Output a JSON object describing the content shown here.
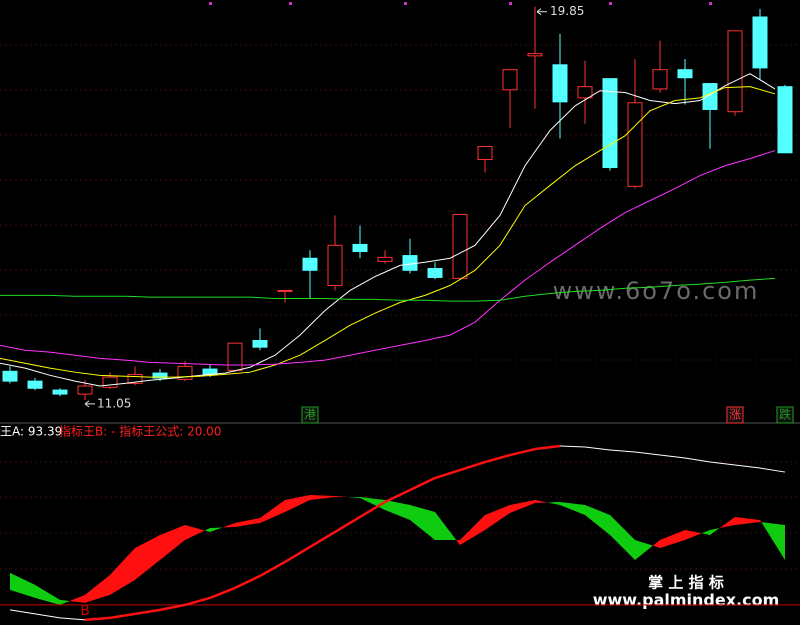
{
  "chart_data": [
    {
      "type": "candlestick",
      "categories": [
        null,
        null,
        null,
        null,
        null,
        null,
        null,
        null,
        null,
        null,
        null,
        null,
        "港",
        null,
        null,
        null,
        null,
        null,
        null,
        null,
        null,
        null,
        null,
        null,
        null,
        null,
        null,
        null,
        null,
        "涨",
        null,
        "跌"
      ],
      "category_colors": [
        null,
        null,
        null,
        null,
        null,
        null,
        null,
        null,
        null,
        null,
        null,
        null,
        "#1e9e1e",
        null,
        null,
        null,
        null,
        null,
        null,
        null,
        null,
        null,
        null,
        null,
        null,
        null,
        null,
        null,
        null,
        "#ff3030",
        null,
        "#1e9e1e"
      ],
      "open": [
        11.69,
        11.47,
        11.27,
        11.18,
        11.33,
        11.42,
        11.65,
        11.51,
        11.74,
        11.71,
        12.38,
        13.5,
        14.22,
        13.61,
        14.53,
        14.15,
        14.28,
        13.99,
        13.77,
        16.43,
        17.99,
        18.75,
        18.55,
        17.81,
        18.24,
        15.83,
        18.01,
        18.44,
        18.13,
        17.5,
        19.62,
        18.06
      ],
      "high": [
        11.8,
        11.54,
        11.31,
        11.49,
        11.67,
        11.8,
        11.74,
        11.92,
        11.83,
        12.32,
        12.65,
        13.5,
        14.4,
        15.18,
        14.95,
        14.4,
        14.66,
        14.13,
        15.2,
        16.72,
        18.44,
        19.85,
        19.24,
        18.64,
        18.24,
        18.68,
        19.09,
        18.68,
        18.13,
        19.31,
        19.8,
        18.1
      ],
      "low": [
        11.42,
        11.27,
        11.13,
        11.05,
        11.29,
        11.38,
        11.47,
        11.47,
        11.56,
        11.67,
        12.16,
        13.23,
        13.32,
        13.5,
        14.22,
        14.1,
        13.88,
        13.75,
        13.73,
        16.14,
        17.14,
        17.57,
        16.9,
        17.23,
        16.18,
        15.78,
        17.93,
        17.66,
        16.67,
        17.41,
        18.22,
        16.58
      ],
      "close": [
        11.47,
        11.31,
        11.18,
        11.36,
        11.56,
        11.62,
        11.54,
        11.8,
        11.62,
        12.32,
        12.23,
        13.5,
        13.95,
        14.51,
        14.37,
        14.24,
        13.95,
        13.79,
        15.2,
        16.72,
        18.44,
        18.8,
        17.72,
        18.06,
        16.25,
        17.7,
        18.44,
        18.26,
        17.55,
        19.31,
        18.48,
        16.58
      ],
      "up_color": "#ff3232",
      "down_color": "#54ffff",
      "lines": [
        {
          "color": "#ffffff",
          "values": [
            11.87,
            11.76,
            11.6,
            11.47,
            11.36,
            11.42,
            11.49,
            11.54,
            11.6,
            11.65,
            11.78,
            12.05,
            12.5,
            13.05,
            13.5,
            13.81,
            14.06,
            14.13,
            14.22,
            14.51,
            15.18,
            16.29,
            17.08,
            17.63,
            17.97,
            17.93,
            17.75,
            17.68,
            17.75,
            18.08,
            18.35,
            18.01
          ]
        },
        {
          "color": "#ffff00",
          "values": [
            11.98,
            11.87,
            11.76,
            11.67,
            11.6,
            11.58,
            11.56,
            11.56,
            11.58,
            11.62,
            11.67,
            11.83,
            12.05,
            12.38,
            12.72,
            12.99,
            13.23,
            13.39,
            13.61,
            13.95,
            14.51,
            15.4,
            15.85,
            16.29,
            16.63,
            16.96,
            17.52,
            17.75,
            17.81,
            18.04,
            18.06,
            17.9
          ]
        },
        {
          "color": "#ff33ff",
          "values": [
            12.27,
            12.16,
            12.12,
            12.05,
            11.98,
            11.94,
            11.89,
            11.87,
            11.85,
            11.83,
            11.83,
            11.85,
            11.89,
            11.94,
            12.05,
            12.16,
            12.27,
            12.38,
            12.5,
            12.79,
            13.28,
            13.73,
            14.13,
            14.51,
            14.89,
            15.24,
            15.51,
            15.78,
            16.07,
            16.29,
            16.45,
            16.63
          ]
        },
        {
          "color": "#22dd22",
          "values": [
            13.39,
            13.39,
            13.39,
            13.37,
            13.37,
            13.37,
            13.35,
            13.35,
            13.35,
            13.35,
            13.35,
            13.32,
            13.32,
            13.32,
            13.3,
            13.3,
            13.28,
            13.28,
            13.26,
            13.26,
            13.28,
            13.37,
            13.43,
            13.48,
            13.5,
            13.55,
            13.57,
            13.61,
            13.64,
            13.68,
            13.73,
            13.77
          ]
        }
      ],
      "high_label": 19.85,
      "low_label": 11.05,
      "ylim": [
        10.6,
        20
      ]
    },
    {
      "type": "indicator",
      "legend_a": "王A: 93.39",
      "legend_b": "指标王B: -  指标王公式: 20.00",
      "categories": [
        null,
        null,
        null,
        "B",
        null,
        null,
        null,
        null,
        null,
        null,
        null,
        null,
        null,
        null,
        null,
        null,
        null,
        null,
        null,
        null,
        null,
        null,
        null,
        null,
        null,
        null,
        null,
        null,
        null,
        null,
        null,
        null
      ],
      "line": {
        "values": [
          17.24,
          15.03,
          12.82,
          11.72,
          12.82,
          15.03,
          17.24,
          20.0,
          23.86,
          29.38,
          36.01,
          43.74,
          52.02,
          60.3,
          68.58,
          76.86,
          83.48,
          90.1,
          94.52,
          98.94,
          102.8,
          106.11,
          107.77,
          107.22,
          105.56,
          104.46,
          102.8,
          101.14,
          98.94,
          97.28,
          95.62,
          93.39
        ],
        "rise_color": "#ff1010",
        "fall_color": "#ffffff"
      },
      "series": [
        {
          "values": [
            28.28,
            23.86,
            20.0,
            25.52,
            36.56,
            51.46,
            58.64,
            64.16,
            60.3,
            65.26,
            68.02,
            77.96,
            80.72,
            80.17,
            79.06,
            72.44,
            66.92,
            55.88,
            55.88,
            69.68,
            75.2,
            77.96,
            75.2,
            69.68,
            58.64,
            44.84,
            55.88,
            61.4,
            58.64,
            68.58,
            66.92,
            44.84
          ]
        },
        {
          "values": [
            37.66,
            31.04,
            22.76,
            21.1,
            25.52,
            33.8,
            44.84,
            55.88,
            62.5,
            63.06,
            65.26,
            71.34,
            77.96,
            79.62,
            79.62,
            77.96,
            75.2,
            71.34,
            53.12,
            61.4,
            70.78,
            76.3,
            76.86,
            75.2,
            69.68,
            55.88,
            51.46,
            55.88,
            61.4,
            64.16,
            65.82,
            64.16
          ]
        }
      ],
      "ribbon_colors": [
        "#ff1010",
        "#10cc10"
      ],
      "ref_line": 20,
      "ref_color": "#c80000",
      "ylim": [
        10,
        110
      ]
    }
  ],
  "watermark": "www.6o7o.com",
  "logo_title": "掌 上 指 标",
  "logo_url": "www.palmindex.com"
}
